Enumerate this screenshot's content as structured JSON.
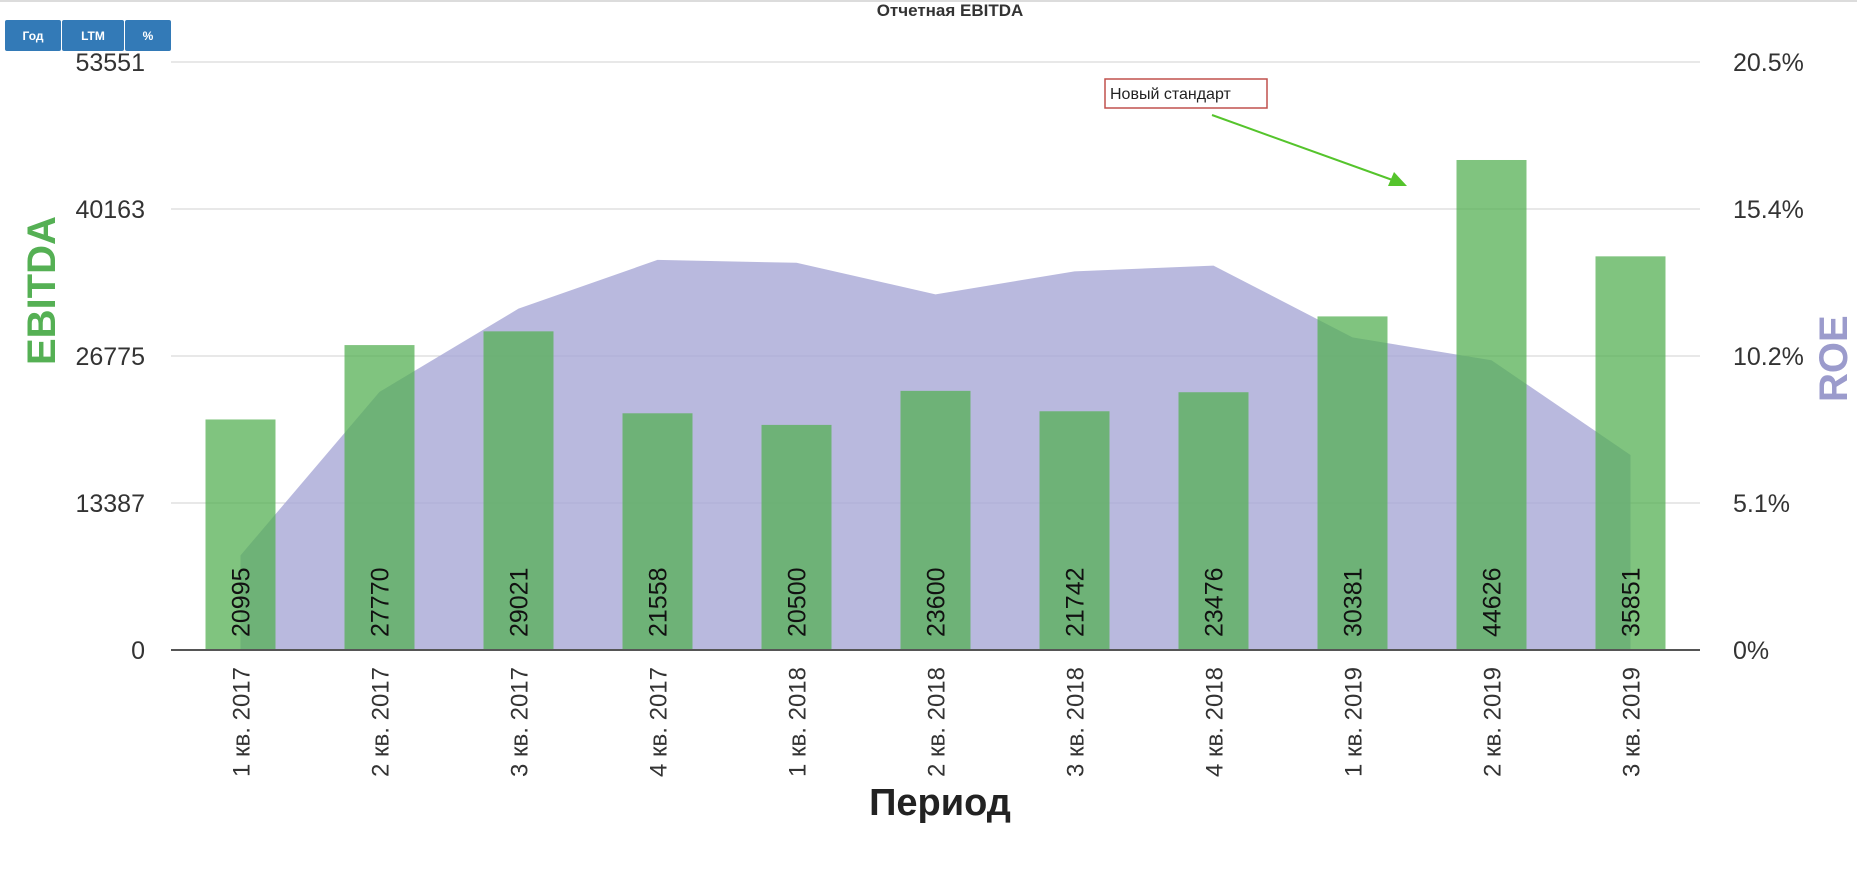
{
  "toolbar": {
    "buttons": [
      "Год",
      "LTM",
      "%"
    ]
  },
  "chart_data": {
    "type": "bar",
    "title": "Отчетная EBITDA",
    "xlabel": "Период",
    "ylabel": "EBITDA",
    "y2label": "ROE",
    "ylim": [
      0,
      53551
    ],
    "y2lim": [
      0,
      20.5
    ],
    "yticks": [
      "0",
      "13387",
      "26775",
      "40163",
      "53551"
    ],
    "y2ticks": [
      "0%",
      "5.1%",
      "10.2%",
      "15.4%",
      "20.5%"
    ],
    "grid": true,
    "categories": [
      "1 кв. 2017",
      "2 кв. 2017",
      "3 кв. 2017",
      "4 кв. 2017",
      "1 кв. 2018",
      "2 кв. 2018",
      "3 кв. 2018",
      "4 кв. 2018",
      "1 кв. 2019",
      "2 кв. 2019",
      "3 кв. 2019"
    ],
    "series": [
      {
        "type": "bar",
        "axis": "left",
        "values": [
          20995,
          27770,
          29021,
          21558,
          20500,
          23600,
          21742,
          23476,
          30381,
          44626,
          35851
        ],
        "color": "#55b054"
      },
      {
        "type": "area",
        "axis": "right",
        "values": [
          3.3,
          9.0,
          11.9,
          13.6,
          13.5,
          12.4,
          13.2,
          13.4,
          10.9,
          10.1,
          6.8
        ],
        "color": "#a7a7d6"
      }
    ],
    "annotation": {
      "text": "Новый стандарт",
      "arrow_color": "#55c42c"
    }
  }
}
